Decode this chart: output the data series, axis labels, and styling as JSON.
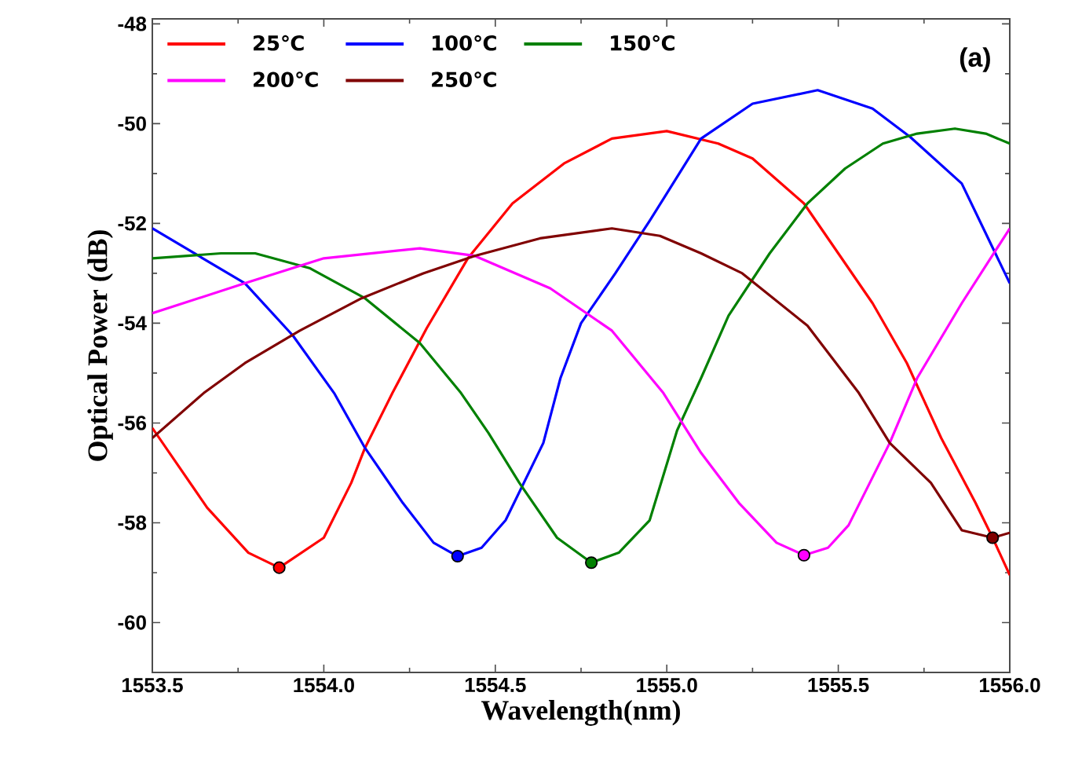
{
  "chart_data": {
    "type": "line",
    "xlabel": "Wavelength(nm)",
    "ylabel": "Optical Power (dB)",
    "annotations": [
      "(a)"
    ],
    "xlim": [
      1553.5,
      1556.0
    ],
    "ylim": [
      -61,
      -47.9
    ],
    "xticks": [
      {
        "value": 1553.5,
        "label": "1553.5"
      },
      {
        "value": 1554.0,
        "label": "1554.0"
      },
      {
        "value": 1554.5,
        "label": "1554.5"
      },
      {
        "value": 1555.0,
        "label": "1555.0"
      },
      {
        "value": 1555.5,
        "label": "1555.5"
      },
      {
        "value": 1556.0,
        "label": "1556.0"
      }
    ],
    "yticks": [
      -60,
      -58,
      -56,
      -54,
      -52,
      -50,
      -48
    ],
    "grid": false,
    "legend": "top",
    "line_style": "solid",
    "series": [
      {
        "name": "25℃",
        "color": "#ff0000",
        "x": [
          1553.5,
          1553.66,
          1553.78,
          1553.87,
          1554.0,
          1554.08,
          1554.12,
          1554.2,
          1554.3,
          1554.42,
          1554.55,
          1554.7,
          1554.84,
          1555.0,
          1555.15,
          1555.25,
          1555.4,
          1555.5,
          1555.6,
          1555.7,
          1555.8,
          1555.9,
          1555.95,
          1556.0
        ],
        "values": [
          -56.1,
          -57.7,
          -58.6,
          -58.9,
          -58.3,
          -57.2,
          -56.5,
          -55.4,
          -54.1,
          -52.7,
          -51.6,
          -50.8,
          -50.3,
          -50.15,
          -50.4,
          -50.7,
          -51.6,
          -52.6,
          -53.6,
          -54.8,
          -56.3,
          -57.6,
          -58.3,
          -59.05
        ]
      },
      {
        "name": "100℃",
        "color": "#0000ff",
        "x": [
          1553.5,
          1553.77,
          1553.91,
          1554.03,
          1554.12,
          1554.23,
          1554.32,
          1554.39,
          1554.46,
          1554.53,
          1554.64,
          1554.69,
          1554.75,
          1554.85,
          1554.95,
          1555.1,
          1555.25,
          1555.44,
          1555.6,
          1555.71,
          1555.86,
          1556.0
        ],
        "values": [
          -52.1,
          -53.2,
          -54.25,
          -55.4,
          -56.5,
          -57.6,
          -58.4,
          -58.67,
          -58.5,
          -57.95,
          -56.4,
          -55.1,
          -54.0,
          -53.0,
          -51.95,
          -50.3,
          -49.6,
          -49.33,
          -49.7,
          -50.27,
          -51.2,
          -53.2
        ]
      },
      {
        "name": "150℃",
        "color": "#008000",
        "x": [
          1553.5,
          1553.7,
          1553.8,
          1553.96,
          1554.12,
          1554.28,
          1554.4,
          1554.48,
          1554.57,
          1554.68,
          1554.78,
          1554.86,
          1554.95,
          1555.03,
          1555.1,
          1555.18,
          1555.3,
          1555.41,
          1555.52,
          1555.63,
          1555.73,
          1555.84,
          1555.93,
          1556.0
        ],
        "values": [
          -52.7,
          -52.6,
          -52.6,
          -52.9,
          -53.5,
          -54.4,
          -55.4,
          -56.2,
          -57.2,
          -58.3,
          -58.8,
          -58.6,
          -57.95,
          -56.15,
          -55.1,
          -53.85,
          -52.6,
          -51.6,
          -50.9,
          -50.4,
          -50.2,
          -50.1,
          -50.2,
          -50.4
        ]
      },
      {
        "name": "200℃",
        "color": "#ff00ff",
        "x": [
          1553.5,
          1553.77,
          1554.0,
          1554.28,
          1554.44,
          1554.66,
          1554.84,
          1554.99,
          1555.1,
          1555.21,
          1555.32,
          1555.4,
          1555.47,
          1555.53,
          1555.65,
          1555.73,
          1555.86,
          1556.0
        ],
        "values": [
          -53.8,
          -53.2,
          -52.7,
          -52.5,
          -52.65,
          -53.3,
          -54.15,
          -55.4,
          -56.6,
          -57.6,
          -58.4,
          -58.65,
          -58.5,
          -58.05,
          -56.4,
          -55.1,
          -53.6,
          -52.1
        ]
      },
      {
        "name": "250℃",
        "color": "#800000",
        "x": [
          1553.5,
          1553.65,
          1553.77,
          1553.93,
          1554.11,
          1554.29,
          1554.44,
          1554.63,
          1554.84,
          1554.98,
          1555.1,
          1555.22,
          1555.41,
          1555.56,
          1555.65,
          1555.77,
          1555.86,
          1555.95,
          1556.0
        ],
        "values": [
          -56.3,
          -55.4,
          -54.8,
          -54.15,
          -53.5,
          -53.0,
          -52.65,
          -52.3,
          -52.1,
          -52.25,
          -52.6,
          -53.0,
          -54.05,
          -55.4,
          -56.4,
          -57.2,
          -58.15,
          -58.3,
          -58.2
        ]
      },
      {
        "type": "scatter",
        "marker": "circle",
        "x": [
          1553.87,
          1554.39,
          1554.78,
          1555.4,
          1555.95
        ],
        "values": [
          -58.9,
          -58.67,
          -58.8,
          -58.65,
          -58.3
        ],
        "colors": [
          "#ff0000",
          "#0000ff",
          "#008000",
          "#ff00ff",
          "#800000"
        ]
      }
    ]
  }
}
